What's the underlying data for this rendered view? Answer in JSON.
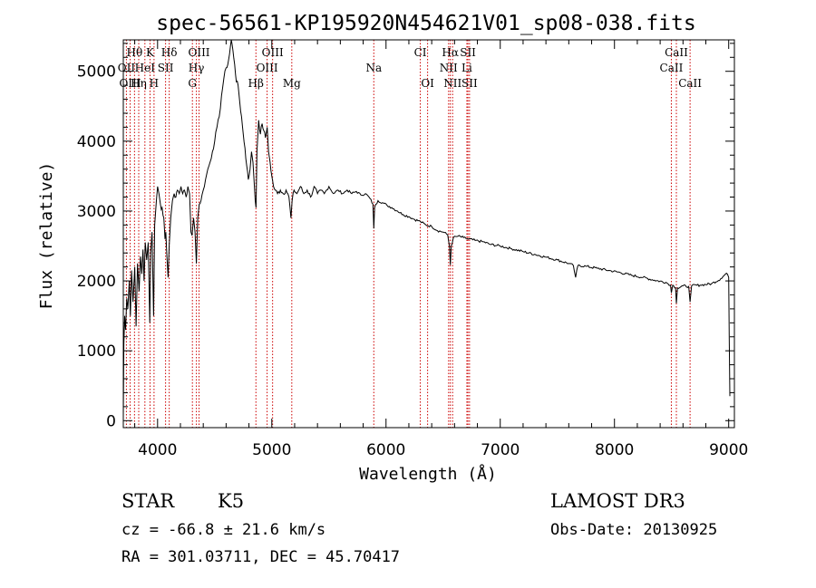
{
  "chart_data": {
    "type": "line",
    "title": "spec-56561-KP195920N454621V01_sp08-038.fits",
    "xlabel": "Wavelength (Å)",
    "ylabel": "Flux (relative)",
    "xlim": [
      3700,
      9050
    ],
    "ylim": [
      -100,
      5450
    ],
    "xticks": [
      4000,
      5000,
      6000,
      7000,
      8000,
      9000
    ],
    "xtick_labels": [
      "4000",
      "5000",
      "6000",
      "7000",
      "8000",
      "9000"
    ],
    "yticks": [
      0,
      1000,
      2000,
      3000,
      4000,
      5000
    ],
    "ytick_labels": [
      "0",
      "1000",
      "2000",
      "3000",
      "4000",
      "5000"
    ],
    "line_color": "#000000",
    "marker_color": "#cc0000",
    "line_markers": [
      {
        "label": "Hθ",
        "wavelength": 3798,
        "row": 0
      },
      {
        "label": "K",
        "wavelength": 3934,
        "row": 0
      },
      {
        "label": "Hδ",
        "wavelength": 4102,
        "row": 0
      },
      {
        "label": "OIII",
        "wavelength": 4363,
        "row": 0
      },
      {
        "label": "OIII",
        "wavelength": 5007,
        "row": 0
      },
      {
        "label": "CI",
        "wavelength": 6300,
        "row": 0
      },
      {
        "label": "Hα",
        "wavelength": 6563,
        "row": 0
      },
      {
        "label": "SII",
        "wavelength": 6717,
        "row": 0
      },
      {
        "label": "CaII",
        "wavelength": 8542,
        "row": 0
      },
      {
        "label": "OII",
        "wavelength": 3727,
        "row": 1
      },
      {
        "label": "HeI",
        "wavelength": 3889,
        "row": 1
      },
      {
        "label": "SII",
        "wavelength": 4070,
        "row": 1
      },
      {
        "label": "Hγ",
        "wavelength": 4340,
        "row": 1
      },
      {
        "label": "OIII",
        "wavelength": 4959,
        "row": 1
      },
      {
        "label": "Na",
        "wavelength": 5893,
        "row": 1
      },
      {
        "label": "NII",
        "wavelength": 6548,
        "row": 1
      },
      {
        "label": "Li",
        "wavelength": 6708,
        "row": 1
      },
      {
        "label": "CaII",
        "wavelength": 8498,
        "row": 1
      },
      {
        "label": "OIII",
        "wavelength": 3760,
        "row": 2
      },
      {
        "label": "Hη",
        "wavelength": 3835,
        "row": 2
      },
      {
        "label": "H",
        "wavelength": 3969,
        "row": 2
      },
      {
        "label": "G",
        "wavelength": 4305,
        "row": 2
      },
      {
        "label": "Hβ",
        "wavelength": 4861,
        "row": 2
      },
      {
        "label": "Mg",
        "wavelength": 5175,
        "row": 2
      },
      {
        "label": "OI",
        "wavelength": 6364,
        "row": 2
      },
      {
        "label": "NII",
        "wavelength": 6583,
        "row": 2
      },
      {
        "label": "SII",
        "wavelength": 6731,
        "row": 2
      },
      {
        "label": "CaII",
        "wavelength": 8662,
        "row": 2
      }
    ],
    "series": [
      {
        "name": "flux",
        "points": [
          [
            3700,
            50
          ],
          [
            3705,
            1100
          ],
          [
            3712,
            1500
          ],
          [
            3720,
            1300
          ],
          [
            3730,
            1750
          ],
          [
            3740,
            1600
          ],
          [
            3752,
            2000
          ],
          [
            3762,
            1500
          ],
          [
            3772,
            2150
          ],
          [
            3785,
            1700
          ],
          [
            3800,
            2200
          ],
          [
            3812,
            1350
          ],
          [
            3825,
            2250
          ],
          [
            3838,
            1850
          ],
          [
            3850,
            2350
          ],
          [
            3862,
            2100
          ],
          [
            3872,
            2450
          ],
          [
            3882,
            2000
          ],
          [
            3892,
            2550
          ],
          [
            3905,
            2300
          ],
          [
            3918,
            2550
          ],
          [
            3932,
            1400
          ],
          [
            3940,
            2400
          ],
          [
            3952,
            2700
          ],
          [
            3965,
            1500
          ],
          [
            3975,
            2800
          ],
          [
            3990,
            3150
          ],
          [
            4000,
            3350
          ],
          [
            4012,
            3250
          ],
          [
            4025,
            3100
          ],
          [
            4040,
            3050
          ],
          [
            4055,
            2900
          ],
          [
            4065,
            2600
          ],
          [
            4072,
            2700
          ],
          [
            4082,
            2350
          ],
          [
            4092,
            2050
          ],
          [
            4102,
            2500
          ],
          [
            4115,
            2900
          ],
          [
            4130,
            3150
          ],
          [
            4145,
            3250
          ],
          [
            4160,
            3200
          ],
          [
            4175,
            3300
          ],
          [
            4190,
            3250
          ],
          [
            4205,
            3350
          ],
          [
            4220,
            3250
          ],
          [
            4235,
            3300
          ],
          [
            4250,
            3200
          ],
          [
            4265,
            3350
          ],
          [
            4280,
            3250
          ],
          [
            4292,
            2700
          ],
          [
            4302,
            2650
          ],
          [
            4315,
            2900
          ],
          [
            4328,
            2700
          ],
          [
            4340,
            2250
          ],
          [
            4352,
            2900
          ],
          [
            4365,
            3100
          ],
          [
            4380,
            3150
          ],
          [
            4400,
            3300
          ],
          [
            4420,
            3450
          ],
          [
            4440,
            3600
          ],
          [
            4460,
            3700
          ],
          [
            4480,
            3850
          ],
          [
            4500,
            4000
          ],
          [
            4520,
            4200
          ],
          [
            4540,
            4350
          ],
          [
            4560,
            4650
          ],
          [
            4580,
            4900
          ],
          [
            4600,
            5050
          ],
          [
            4615,
            5100
          ],
          [
            4630,
            5250
          ],
          [
            4645,
            5450
          ],
          [
            4660,
            5300
          ],
          [
            4675,
            5100
          ],
          [
            4690,
            4850
          ],
          [
            4705,
            4800
          ],
          [
            4720,
            4550
          ],
          [
            4735,
            4350
          ],
          [
            4750,
            4100
          ],
          [
            4765,
            3900
          ],
          [
            4780,
            3650
          ],
          [
            4795,
            3450
          ],
          [
            4810,
            3600
          ],
          [
            4822,
            3850
          ],
          [
            4835,
            3700
          ],
          [
            4848,
            3350
          ],
          [
            4855,
            3150
          ],
          [
            4862,
            3050
          ],
          [
            4870,
            3850
          ],
          [
            4885,
            4300
          ],
          [
            4900,
            4100
          ],
          [
            4915,
            4250
          ],
          [
            4930,
            4150
          ],
          [
            4945,
            4050
          ],
          [
            4960,
            4200
          ],
          [
            4972,
            3850
          ],
          [
            4985,
            3700
          ],
          [
            5000,
            3500
          ],
          [
            5015,
            3350
          ],
          [
            5030,
            3300
          ],
          [
            5050,
            3250
          ],
          [
            5075,
            3300
          ],
          [
            5100,
            3250
          ],
          [
            5125,
            3300
          ],
          [
            5150,
            3200
          ],
          [
            5168,
            2900
          ],
          [
            5178,
            3150
          ],
          [
            5195,
            3300
          ],
          [
            5220,
            3250
          ],
          [
            5250,
            3350
          ],
          [
            5280,
            3250
          ],
          [
            5310,
            3300
          ],
          [
            5340,
            3200
          ],
          [
            5370,
            3350
          ],
          [
            5400,
            3250
          ],
          [
            5430,
            3300
          ],
          [
            5460,
            3250
          ],
          [
            5500,
            3350
          ],
          [
            5540,
            3250
          ],
          [
            5580,
            3300
          ],
          [
            5620,
            3250
          ],
          [
            5660,
            3300
          ],
          [
            5700,
            3250
          ],
          [
            5740,
            3280
          ],
          [
            5780,
            3230
          ],
          [
            5820,
            3250
          ],
          [
            5860,
            3180
          ],
          [
            5885,
            3100
          ],
          [
            5893,
            2750
          ],
          [
            5900,
            3050
          ],
          [
            5930,
            3150
          ],
          [
            5970,
            3120
          ],
          [
            6010,
            3080
          ],
          [
            6050,
            3050
          ],
          [
            6100,
            3000
          ],
          [
            6150,
            2950
          ],
          [
            6200,
            2920
          ],
          [
            6250,
            2880
          ],
          [
            6300,
            2850
          ],
          [
            6350,
            2800
          ],
          [
            6400,
            2780
          ],
          [
            6450,
            2720
          ],
          [
            6500,
            2700
          ],
          [
            6540,
            2660
          ],
          [
            6555,
            2500
          ],
          [
            6563,
            2230
          ],
          [
            6571,
            2500
          ],
          [
            6590,
            2620
          ],
          [
            6630,
            2640
          ],
          [
            6680,
            2620
          ],
          [
            6720,
            2600
          ],
          [
            6780,
            2580
          ],
          [
            6850,
            2560
          ],
          [
            6920,
            2520
          ],
          [
            7000,
            2500
          ],
          [
            7100,
            2460
          ],
          [
            7200,
            2420
          ],
          [
            7300,
            2380
          ],
          [
            7400,
            2340
          ],
          [
            7500,
            2300
          ],
          [
            7600,
            2250
          ],
          [
            7640,
            2220
          ],
          [
            7660,
            2050
          ],
          [
            7680,
            2220
          ],
          [
            7750,
            2210
          ],
          [
            7850,
            2180
          ],
          [
            7950,
            2150
          ],
          [
            8050,
            2120
          ],
          [
            8150,
            2080
          ],
          [
            8250,
            2050
          ],
          [
            8350,
            2010
          ],
          [
            8450,
            1980
          ],
          [
            8490,
            1940
          ],
          [
            8498,
            1830
          ],
          [
            8510,
            1940
          ],
          [
            8535,
            1900
          ],
          [
            8542,
            1680
          ],
          [
            8552,
            1900
          ],
          [
            8600,
            1930
          ],
          [
            8650,
            1920
          ],
          [
            8662,
            1700
          ],
          [
            8675,
            1930
          ],
          [
            8750,
            1940
          ],
          [
            8850,
            1960
          ],
          [
            8930,
            2030
          ],
          [
            8980,
            2110
          ],
          [
            9000,
            2050
          ],
          [
            9005,
            1200
          ],
          [
            9010,
            350
          ]
        ]
      }
    ]
  },
  "annotations": {
    "object_class": "STAR",
    "subclass": "K5",
    "survey": "LAMOST DR3",
    "redshift": "cz = -66.8 ± 21.6 km/s",
    "obs_date": "Obs-Date: 20130925",
    "coords": "RA = 301.03711, DEC =  45.70417"
  }
}
